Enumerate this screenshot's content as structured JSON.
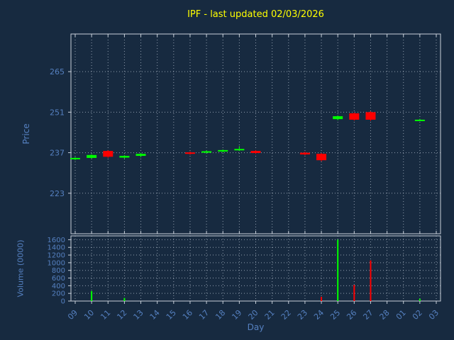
{
  "colors": {
    "background": "#172a40",
    "title": "#ffff00",
    "axis_label": "#5580c0",
    "tick_label": "#5580c0",
    "grid": "#c4cedb",
    "frame": "#c8d0da",
    "up": "#00ff00",
    "down": "#ff0000"
  },
  "chart_data": [
    {
      "type": "candlestick",
      "title": "IPF - last updated 02/03/2026",
      "xlabel": "Day",
      "ylabel": "Price",
      "x_ticks": [
        "09",
        "10",
        "11",
        "12",
        "13",
        "14",
        "15",
        "16",
        "17",
        "18",
        "19",
        "20",
        "21",
        "22",
        "23",
        "24",
        "25",
        "26",
        "27",
        "28",
        "01",
        "02",
        "03"
      ],
      "y_ticks": [
        223,
        237,
        251,
        265
      ],
      "ylim": [
        209,
        278
      ],
      "grid": true,
      "candles": [
        {
          "x": "09",
          "open": 234.8,
          "close": 235.2,
          "high": 235.5,
          "low": 234.4
        },
        {
          "x": "10",
          "open": 235.2,
          "close": 236.2,
          "high": 236.5,
          "low": 234.9
        },
        {
          "x": "11",
          "open": 237.6,
          "close": 235.6,
          "high": 237.9,
          "low": 235.2
        },
        {
          "x": "12",
          "open": 235.3,
          "close": 235.9,
          "high": 236.2,
          "low": 235.0
        },
        {
          "x": "13",
          "open": 235.9,
          "close": 236.6,
          "high": 236.9,
          "low": 235.4
        },
        {
          "x": "16",
          "open": 237.1,
          "close": 236.6,
          "high": 237.4,
          "low": 236.3
        },
        {
          "x": "17",
          "open": 237.0,
          "close": 237.5,
          "high": 237.8,
          "low": 236.8
        },
        {
          "x": "18",
          "open": 237.4,
          "close": 237.9,
          "high": 238.1,
          "low": 237.1
        },
        {
          "x": "19",
          "open": 237.8,
          "close": 238.3,
          "high": 239.3,
          "low": 237.6
        },
        {
          "x": "20",
          "open": 237.6,
          "close": 236.9,
          "high": 237.9,
          "low": 236.6
        },
        {
          "x": "23",
          "open": 237.0,
          "close": 236.4,
          "high": 237.3,
          "low": 236.1
        },
        {
          "x": "24",
          "open": 236.6,
          "close": 234.4,
          "high": 236.9,
          "low": 234.0
        },
        {
          "x": "25",
          "open": 248.6,
          "close": 249.6,
          "high": 249.9,
          "low": 248.2
        },
        {
          "x": "26",
          "open": 250.6,
          "close": 248.4,
          "high": 250.9,
          "low": 248.1
        },
        {
          "x": "27",
          "open": 251.0,
          "close": 248.4,
          "high": 251.3,
          "low": 248.0
        },
        {
          "x": "02",
          "open": 248.1,
          "close": 248.4,
          "high": 248.7,
          "low": 247.9
        }
      ]
    },
    {
      "type": "bar",
      "ylabel": "Volume (0000)",
      "y_ticks": [
        0,
        200,
        400,
        600,
        800,
        1000,
        1200,
        1400,
        1600
      ],
      "ylim": [
        0,
        1700
      ],
      "grid": true,
      "bars": [
        {
          "x": "10",
          "value": 260,
          "dir": "up"
        },
        {
          "x": "12",
          "value": 80,
          "dir": "up"
        },
        {
          "x": "24",
          "value": 110,
          "dir": "down"
        },
        {
          "x": "25",
          "value": 1600,
          "dir": "up"
        },
        {
          "x": "26",
          "value": 420,
          "dir": "down"
        },
        {
          "x": "27",
          "value": 1060,
          "dir": "down"
        },
        {
          "x": "02",
          "value": 60,
          "dir": "up"
        }
      ]
    }
  ]
}
